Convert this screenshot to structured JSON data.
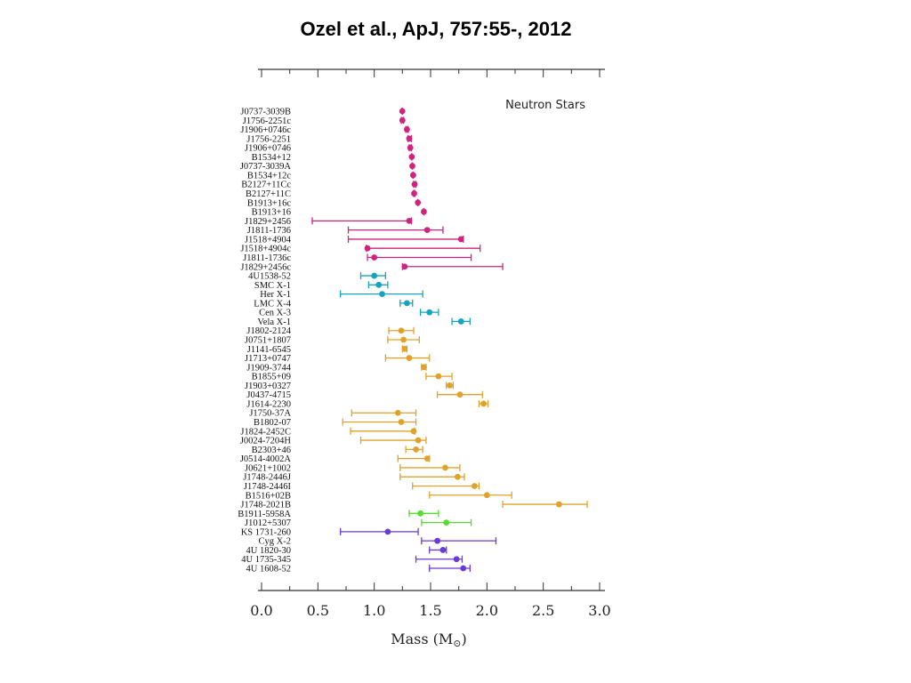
{
  "slide": {
    "title": "Ozel et al., ApJ, 757:55-, 2012"
  },
  "chart_data": {
    "type": "scatter",
    "title": "",
    "legend_text": "Neutron Stars",
    "legend_position": "top-right",
    "xlabel": "Mass (M",
    "xlabel_symbol": "⊙",
    "xlabel_close": ")",
    "xlim": [
      0,
      3.0
    ],
    "xticks": [
      "0.0",
      "0.5",
      "1.0",
      "1.5",
      "2.0",
      "2.5",
      "3.0"
    ],
    "grid": false,
    "groups": [
      {
        "color": "#d0237c",
        "stars": [
          {
            "name": "J0737-3039B",
            "mass": 1.249,
            "lo": 1.248,
            "hi": 1.25,
            "marker": "dot"
          },
          {
            "name": "J1756-2251c",
            "mass": 1.25,
            "lo": 1.24,
            "hi": 1.26,
            "marker": "dot"
          },
          {
            "name": "J1906+0746c",
            "mass": 1.29,
            "lo": 1.28,
            "hi": 1.3,
            "marker": "dot"
          },
          {
            "name": "J1756-2251",
            "mass": 1.31,
            "lo": 1.3,
            "hi": 1.33,
            "marker": "dot"
          },
          {
            "name": "J1906+0746",
            "mass": 1.32,
            "lo": 1.31,
            "hi": 1.33,
            "marker": "dot"
          },
          {
            "name": "B1534+12",
            "mass": 1.333,
            "lo": 1.332,
            "hi": 1.334,
            "marker": "dot"
          },
          {
            "name": "J0737-3039A",
            "mass": 1.338,
            "lo": 1.337,
            "hi": 1.339,
            "marker": "dot"
          },
          {
            "name": "B1534+12c",
            "mass": 1.345,
            "lo": 1.344,
            "hi": 1.346,
            "marker": "dot"
          },
          {
            "name": "B2127+11Cc",
            "mass": 1.358,
            "lo": 1.35,
            "hi": 1.37,
            "marker": "dot"
          },
          {
            "name": "B2127+11C",
            "mass": 1.354,
            "lo": 1.35,
            "hi": 1.36,
            "marker": "dot"
          },
          {
            "name": "B1913+16c",
            "mass": 1.387,
            "lo": 1.386,
            "hi": 1.388,
            "marker": "dot"
          },
          {
            "name": "B1913+16",
            "mass": 1.44,
            "lo": 1.439,
            "hi": 1.441,
            "marker": "dot"
          },
          {
            "name": "J1829+2456",
            "mass": 1.31,
            "lo": 0.45,
            "hi": 1.33,
            "marker": "dot"
          },
          {
            "name": "J1811-1736",
            "mass": 1.47,
            "lo": 0.77,
            "hi": 1.61,
            "marker": "dot"
          },
          {
            "name": "J1518+4904",
            "mass": 1.77,
            "lo": 0.77,
            "hi": 1.79,
            "marker": "dot"
          },
          {
            "name": "J1518+4904c",
            "mass": 0.94,
            "lo": 0.93,
            "hi": 1.94,
            "marker": "dot"
          },
          {
            "name": "J1811-1736c",
            "mass": 1.0,
            "lo": 0.94,
            "hi": 1.86,
            "marker": "dot"
          },
          {
            "name": "J1829+2456c",
            "mass": 1.27,
            "lo": 1.25,
            "hi": 2.14,
            "marker": "dot"
          }
        ]
      },
      {
        "color": "#17a3bd",
        "stars": [
          {
            "name": "4U1538-52",
            "mass": 1.0,
            "lo": 0.88,
            "hi": 1.1,
            "marker": "dot"
          },
          {
            "name": "SMC X-1",
            "mass": 1.04,
            "lo": 0.95,
            "hi": 1.12,
            "marker": "dot"
          },
          {
            "name": "Her X-1",
            "mass": 1.07,
            "lo": 0.7,
            "hi": 1.43,
            "marker": "dot"
          },
          {
            "name": "LMC X-4",
            "mass": 1.29,
            "lo": 1.23,
            "hi": 1.34,
            "marker": "dot"
          },
          {
            "name": "Cen X-3",
            "mass": 1.49,
            "lo": 1.41,
            "hi": 1.57,
            "marker": "dot"
          },
          {
            "name": "Vela X-1",
            "mass": 1.77,
            "lo": 1.69,
            "hi": 1.85,
            "marker": "dot"
          }
        ]
      },
      {
        "color": "#e0a22a",
        "stars": [
          {
            "name": "J1802-2124",
            "mass": 1.24,
            "lo": 1.13,
            "hi": 1.35,
            "marker": "dot"
          },
          {
            "name": "J0751+1807",
            "mass": 1.26,
            "lo": 1.12,
            "hi": 1.4,
            "marker": "dot"
          },
          {
            "name": "J1141-6545",
            "mass": 1.27,
            "lo": 1.25,
            "hi": 1.29,
            "marker": "dot"
          },
          {
            "name": "J1713+0747",
            "mass": 1.31,
            "lo": 1.1,
            "hi": 1.49,
            "marker": "dot"
          },
          {
            "name": "J1909-3744",
            "mass": 1.44,
            "lo": 1.42,
            "hi": 1.46,
            "marker": "dot"
          },
          {
            "name": "B1855+09",
            "mass": 1.57,
            "lo": 1.46,
            "hi": 1.69,
            "marker": "dot"
          },
          {
            "name": "J1903+0327",
            "mass": 1.67,
            "lo": 1.64,
            "hi": 1.7,
            "marker": "dot"
          },
          {
            "name": "J0437-4715",
            "mass": 1.76,
            "lo": 1.56,
            "hi": 1.96,
            "marker": "dot"
          },
          {
            "name": "J1614-2230",
            "mass": 1.97,
            "lo": 1.93,
            "hi": 2.01,
            "marker": "dot"
          },
          {
            "name": "J1750-37A",
            "mass": 1.21,
            "lo": 0.8,
            "hi": 1.37,
            "marker": "dot"
          },
          {
            "name": "B1802-07",
            "mass": 1.24,
            "lo": 0.72,
            "hi": 1.37,
            "marker": "dot"
          },
          {
            "name": "J1824-2452C",
            "mass": 1.35,
            "lo": 0.79,
            "hi": 1.36,
            "marker": "dot"
          },
          {
            "name": "J0024-7204H",
            "mass": 1.39,
            "lo": 0.88,
            "hi": 1.46,
            "marker": "dot"
          },
          {
            "name": "B2303+46",
            "mass": 1.37,
            "lo": 1.28,
            "hi": 1.43,
            "marker": "dot"
          },
          {
            "name": "J0514-4002A",
            "mass": 1.47,
            "lo": 1.21,
            "hi": 1.49,
            "marker": "dot"
          },
          {
            "name": "J0621+1002",
            "mass": 1.63,
            "lo": 1.23,
            "hi": 1.76,
            "marker": "dot"
          },
          {
            "name": "J1748-2446J",
            "mass": 1.74,
            "lo": 1.23,
            "hi": 1.8,
            "marker": "dot"
          },
          {
            "name": "J1748-2446I",
            "mass": 1.89,
            "lo": 1.34,
            "hi": 1.93,
            "marker": "dot"
          },
          {
            "name": "B1516+02B",
            "mass": 2.0,
            "lo": 1.49,
            "hi": 2.22,
            "marker": "dot"
          },
          {
            "name": "J1748-2021B",
            "mass": 2.64,
            "lo": 2.14,
            "hi": 2.89,
            "marker": "dot"
          }
        ]
      },
      {
        "color": "#55dd2f",
        "stars": [
          {
            "name": "B1911-5958A",
            "mass": 1.41,
            "lo": 1.31,
            "hi": 1.57,
            "marker": "dot"
          },
          {
            "name": "J1012+5307",
            "mass": 1.64,
            "lo": 1.42,
            "hi": 1.86,
            "marker": "dot"
          }
        ]
      },
      {
        "color": "#6a3ad8",
        "stars": [
          {
            "name": "KS 1731-260",
            "mass": 1.12,
            "lo": 0.7,
            "hi": 1.39,
            "marker": "dot"
          },
          {
            "name": "Cyg X-2",
            "mass": 1.56,
            "lo": 1.42,
            "hi": 2.08,
            "marker": "dot"
          },
          {
            "name": "4U 1820-30",
            "mass": 1.61,
            "lo": 1.49,
            "hi": 1.64,
            "marker": "dot"
          },
          {
            "name": "4U 1735-345",
            "mass": 1.73,
            "lo": 1.37,
            "hi": 1.78,
            "marker": "dot"
          },
          {
            "name": "4U 1608-52",
            "mass": 1.79,
            "lo": 1.49,
            "hi": 1.85,
            "marker": "dot"
          }
        ]
      }
    ]
  }
}
